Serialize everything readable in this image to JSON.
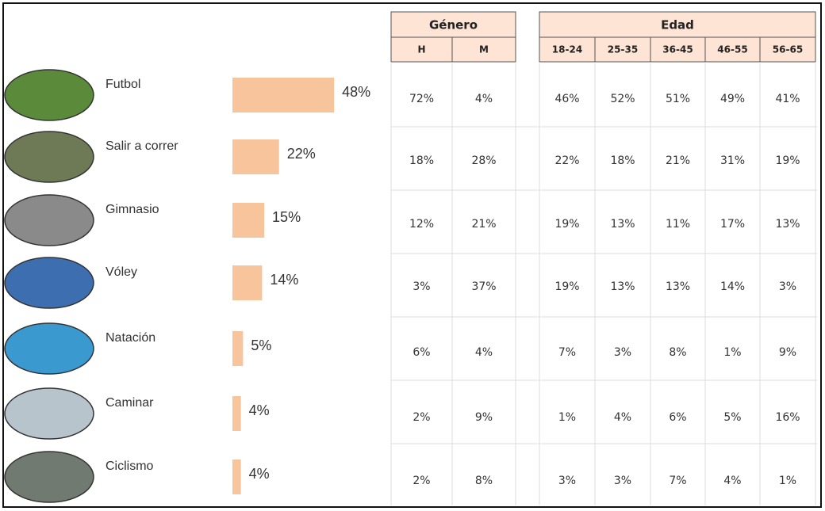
{
  "sports": {
    "names": [
      "Futbol",
      "Salir a correr",
      "Gimnasio",
      "Vóley",
      "Natación",
      "Caminar",
      "Ciclismo"
    ],
    "values": [
      48,
      22,
      15,
      14,
      5,
      4,
      4
    ],
    "value_labels": [
      "48%",
      "22%",
      "15%",
      "14%",
      "5%",
      "4%",
      "4%"
    ],
    "color": "#f8c49c"
  },
  "table": {
    "groups": [
      {
        "label": "Género",
        "columns": [
          "H",
          "M"
        ]
      },
      {
        "label": "Edad",
        "columns": [
          "18-24",
          "25-35",
          "36-45",
          "46-55",
          "56-65"
        ]
      }
    ],
    "rows": [
      [
        "72%",
        "4%",
        "46%",
        "52%",
        "51%",
        "49%",
        "41%"
      ],
      [
        "18%",
        "28%",
        "22%",
        "18%",
        "21%",
        "31%",
        "19%"
      ],
      [
        "12%",
        "21%",
        "19%",
        "13%",
        "11%",
        "17%",
        "13%"
      ],
      [
        "3%",
        "37%",
        "19%",
        "13%",
        "13%",
        "14%",
        "3%"
      ],
      [
        "6%",
        "4%",
        "7%",
        "3%",
        "8%",
        "1%",
        "9%"
      ],
      [
        "2%",
        "9%",
        "1%",
        "4%",
        "6%",
        "5%",
        "16%"
      ],
      [
        "2%",
        "8%",
        "3%",
        "3%",
        "7%",
        "4%",
        "1%"
      ]
    ]
  }
}
